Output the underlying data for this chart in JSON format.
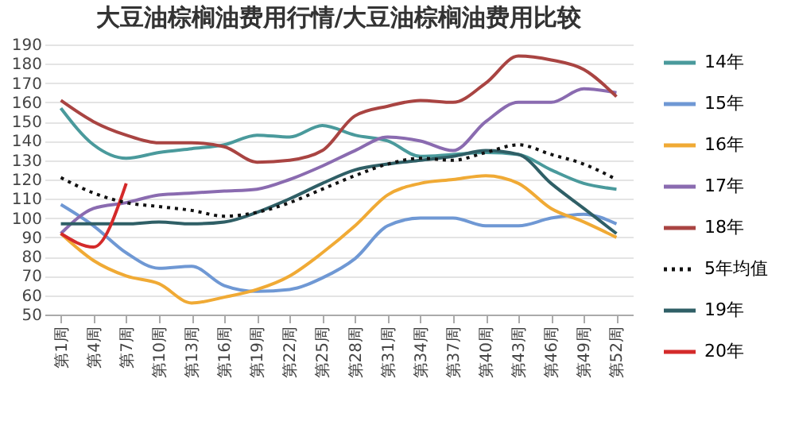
{
  "chart_data": {
    "type": "line",
    "title": "大豆油棕榈油费用行情/大豆油棕榈油费用比较",
    "categories": [
      "第1周",
      "第4周",
      "第7周",
      "第10周",
      "第13周",
      "第16周",
      "第19周",
      "第22周",
      "第25周",
      "第28周",
      "第31周",
      "第34周",
      "第37周",
      "第40周",
      "第43周",
      "第46周",
      "第49周",
      "第52周"
    ],
    "ylim": [
      50,
      190
    ],
    "yticks": [
      50,
      60,
      70,
      80,
      90,
      100,
      110,
      120,
      130,
      140,
      150,
      160,
      170,
      180,
      190
    ],
    "grid": "y",
    "legend": "right",
    "marker": "none",
    "series": [
      {
        "name": "14年",
        "color": "#4a9a9c",
        "values": [
          157,
          138,
          131,
          134,
          136,
          138,
          143,
          142,
          148,
          143,
          140,
          132,
          133,
          134,
          133,
          125,
          118,
          115
        ]
      },
      {
        "name": "15年",
        "color": "#6f98d4",
        "values": [
          107,
          96,
          82,
          74,
          75,
          65,
          62,
          63,
          69,
          79,
          96,
          100,
          100,
          96,
          96,
          100,
          102,
          97
        ]
      },
      {
        "name": "16年",
        "color": "#f0aa35",
        "values": [
          92,
          78,
          70,
          66,
          56,
          59,
          63,
          70,
          82,
          96,
          112,
          118,
          120,
          122,
          118,
          105,
          98,
          90
        ]
      },
      {
        "name": "17年",
        "color": "#8a6bb0",
        "values": [
          92,
          105,
          108,
          112,
          113,
          114,
          115,
          120,
          127,
          135,
          142,
          140,
          135,
          150,
          160,
          160,
          167,
          165
        ]
      },
      {
        "name": "18年",
        "color": "#a94442",
        "values": [
          161,
          150,
          143,
          139,
          139,
          137,
          129,
          130,
          135,
          153,
          158,
          161,
          160,
          170,
          184,
          182,
          177,
          163
        ]
      },
      {
        "name": "5年均值",
        "color": "#111111",
        "line_style": "dotted",
        "values": [
          121,
          113,
          108,
          106,
          104,
          101,
          103,
          108,
          115,
          122,
          128,
          131,
          130,
          134,
          138,
          133,
          128,
          120
        ]
      },
      {
        "name": "19年",
        "color": "#2f5f66",
        "values": [
          97,
          97,
          97,
          98,
          97,
          98,
          103,
          110,
          118,
          125,
          128,
          130,
          132,
          135,
          133,
          118,
          105,
          92
        ]
      },
      {
        "name": "20年",
        "color": "#d42a2a",
        "values": [
          92,
          85,
          118,
          null,
          null,
          null,
          null,
          null,
          null,
          null,
          null,
          null,
          null,
          null,
          null,
          null,
          null,
          null
        ]
      }
    ]
  }
}
